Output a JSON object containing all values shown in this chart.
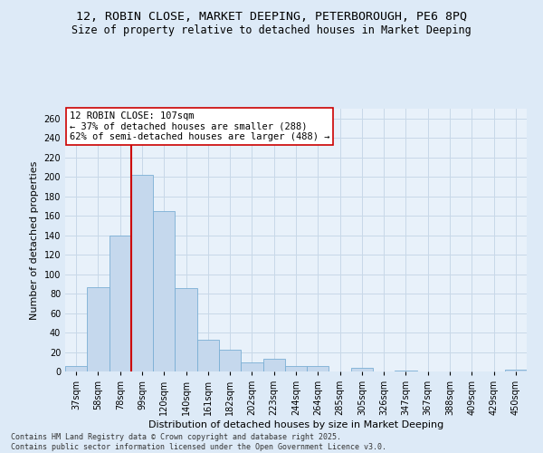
{
  "title_line1": "12, ROBIN CLOSE, MARKET DEEPING, PETERBOROUGH, PE6 8PQ",
  "title_line2": "Size of property relative to detached houses in Market Deeping",
  "xlabel": "Distribution of detached houses by size in Market Deeping",
  "ylabel": "Number of detached properties",
  "footer_line1": "Contains HM Land Registry data © Crown copyright and database right 2025.",
  "footer_line2": "Contains public sector information licensed under the Open Government Licence v3.0.",
  "bins": [
    "37sqm",
    "58sqm",
    "78sqm",
    "99sqm",
    "120sqm",
    "140sqm",
    "161sqm",
    "182sqm",
    "202sqm",
    "223sqm",
    "244sqm",
    "264sqm",
    "285sqm",
    "305sqm",
    "326sqm",
    "347sqm",
    "367sqm",
    "388sqm",
    "409sqm",
    "429sqm",
    "450sqm"
  ],
  "values": [
    6,
    87,
    140,
    202,
    165,
    86,
    33,
    22,
    9,
    13,
    6,
    6,
    0,
    4,
    0,
    1,
    0,
    0,
    0,
    0,
    2
  ],
  "bar_color": "#c5d8ed",
  "bar_edge_color": "#7aafd4",
  "grid_color": "#c8d8e8",
  "background_color": "#ddeaf7",
  "plot_bg_color": "#e8f1fa",
  "annotation_text": "12 ROBIN CLOSE: 107sqm\n← 37% of detached houses are smaller (288)\n62% of semi-detached houses are larger (488) →",
  "annotation_box_color": "#ffffff",
  "annotation_box_edge": "#cc0000",
  "vline_x_index": 3,
  "vline_color": "#cc0000",
  "ylim": [
    0,
    270
  ],
  "yticks": [
    0,
    20,
    40,
    60,
    80,
    100,
    120,
    140,
    160,
    180,
    200,
    220,
    240,
    260
  ],
  "title_fontsize": 9.5,
  "subtitle_fontsize": 8.5,
  "axis_label_fontsize": 8,
  "tick_fontsize": 7,
  "annotation_fontsize": 7.5,
  "footer_fontsize": 6
}
